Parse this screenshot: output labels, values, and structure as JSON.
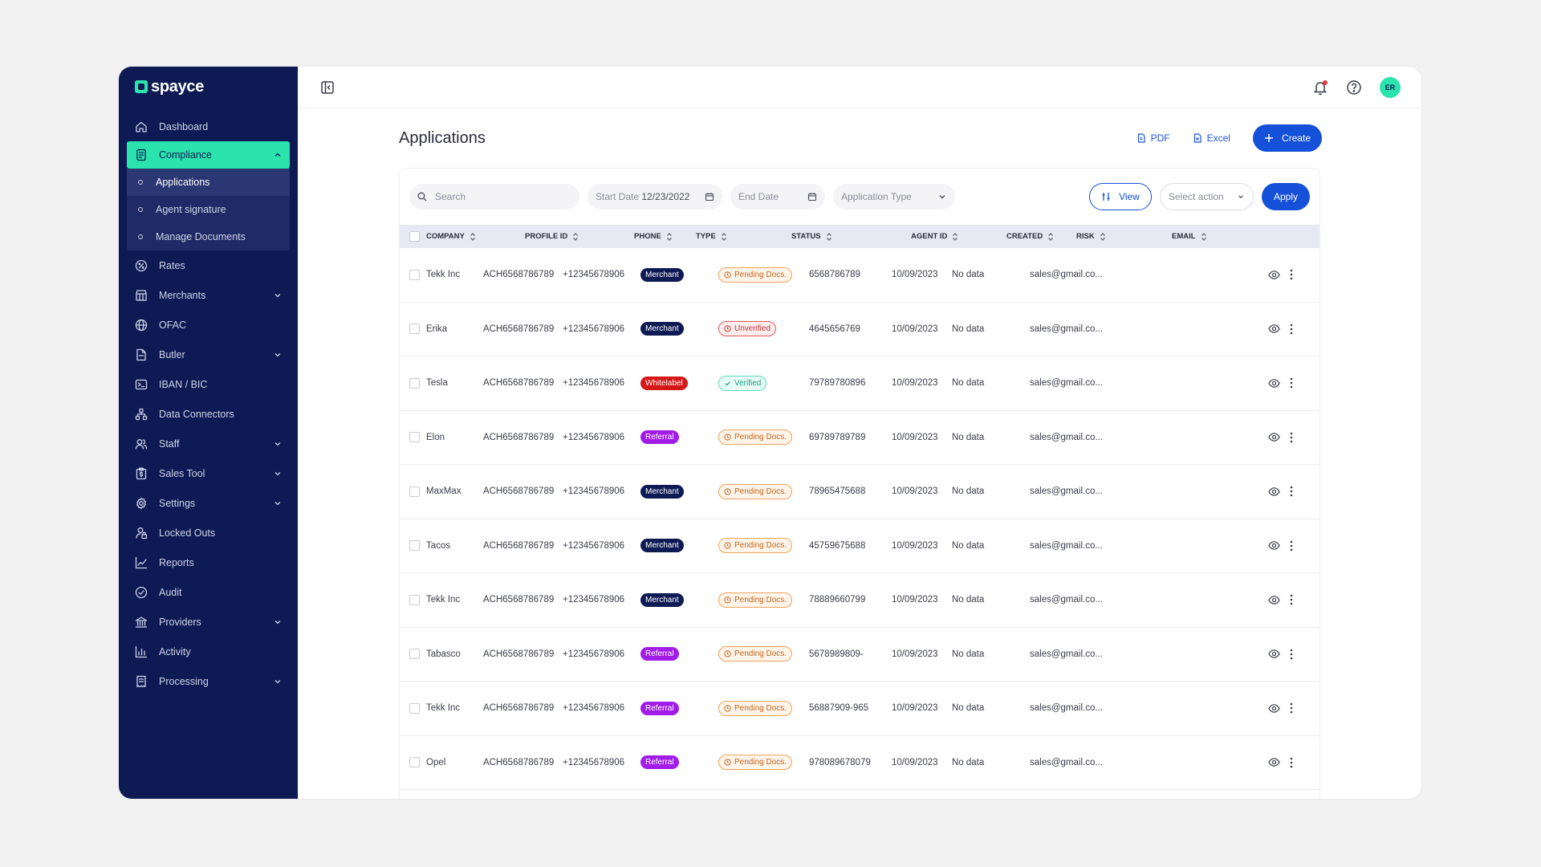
{
  "brand": {
    "name": "spayce"
  },
  "sidebar": {
    "items": [
      {
        "label": "Dashboard",
        "icon": "home-icon",
        "expandable": false
      },
      {
        "label": "Compliance",
        "icon": "document-icon",
        "expandable": true,
        "active": true
      },
      {
        "label": "Rates",
        "icon": "percent-icon",
        "expandable": false
      },
      {
        "label": "Merchants",
        "icon": "store-icon",
        "expandable": true
      },
      {
        "label": "OFAC",
        "icon": "globe-icon",
        "expandable": false
      },
      {
        "label": "Butler",
        "icon": "file-icon",
        "expandable": true
      },
      {
        "label": "IBAN / BIC",
        "icon": "terminal-icon",
        "expandable": false
      },
      {
        "label": "Data Connectors",
        "icon": "network-icon",
        "expandable": false
      },
      {
        "label": "Staff",
        "icon": "users-icon",
        "expandable": true
      },
      {
        "label": "Sales Tool",
        "icon": "clipboard-dollar-icon",
        "expandable": true
      },
      {
        "label": "Settings",
        "icon": "gear-icon",
        "expandable": true
      },
      {
        "label": "Locked Outs",
        "icon": "lock-user-icon",
        "expandable": false
      },
      {
        "label": "Reports",
        "icon": "chart-line-icon",
        "expandable": false
      },
      {
        "label": "Audit",
        "icon": "check-circle-icon",
        "expandable": false
      },
      {
        "label": "Providers",
        "icon": "bank-icon",
        "expandable": true
      },
      {
        "label": "Activity",
        "icon": "bar-chart-icon",
        "expandable": false
      },
      {
        "label": "Processing",
        "icon": "receipt-icon",
        "expandable": true
      }
    ],
    "compliance_sub": [
      {
        "label": "Applications",
        "current": true
      },
      {
        "label": "Agent signature",
        "current": false
      },
      {
        "label": "Manage Documents",
        "current": false
      }
    ]
  },
  "topbar": {
    "avatar_initials": "ER"
  },
  "page": {
    "title": "Applications",
    "pdf_label": "PDF",
    "excel_label": "Excel",
    "create_label": "Create"
  },
  "filters": {
    "search_placeholder": "Search",
    "start_date_label": "Start Date",
    "start_date_value": "12/23/2022",
    "end_date_placeholder": "End Date",
    "application_type_placeholder": "Application Type",
    "view_label": "View",
    "select_action_placeholder": "Select action",
    "apply_label": "Apply"
  },
  "table": {
    "headers": {
      "company": "COMPANY",
      "profile_id": "PROFILE ID",
      "phone": "PHONE",
      "type": "TYPE",
      "status": "STATUS",
      "agent_id": "AGENT ID",
      "created": "CREATED",
      "risk": "RISK",
      "email": "EMAIL"
    },
    "rows": [
      {
        "company": "Tekk Inc",
        "profile_id": "ACH6568786789",
        "phone": "+12345678906",
        "type": "Merchant",
        "status": "Pending Docs.",
        "agent_id": "6568786789",
        "created": "10/09/2023",
        "risk": "No data",
        "email": "sales@gmail.co..."
      },
      {
        "company": "Erika",
        "profile_id": "ACH6568786789",
        "phone": "+12345678906",
        "type": "Merchant",
        "status": "Unverified",
        "agent_id": "4645656769",
        "created": "10/09/2023",
        "risk": "No data",
        "email": "sales@gmail.co..."
      },
      {
        "company": "Tesla",
        "profile_id": "ACH6568786789",
        "phone": "+12345678906",
        "type": "Whitelabel",
        "status": "Verified",
        "agent_id": "79789780896",
        "created": "10/09/2023",
        "risk": "No data",
        "email": "sales@gmail.co..."
      },
      {
        "company": "Elon",
        "profile_id": "ACH6568786789",
        "phone": "+12345678906",
        "type": "Referral",
        "status": "Pending Docs.",
        "agent_id": "69789789789",
        "created": "10/09/2023",
        "risk": "No data",
        "email": "sales@gmail.co..."
      },
      {
        "company": "MaxMax",
        "profile_id": "ACH6568786789",
        "phone": "+12345678906",
        "type": "Merchant",
        "status": "Pending Docs.",
        "agent_id": "78965475688",
        "created": "10/09/2023",
        "risk": "No data",
        "email": "sales@gmail.co..."
      },
      {
        "company": "Tacos",
        "profile_id": "ACH6568786789",
        "phone": "+12345678906",
        "type": "Merchant",
        "status": "Pending Docs.",
        "agent_id": "45759675688",
        "created": "10/09/2023",
        "risk": "No data",
        "email": "sales@gmail.co..."
      },
      {
        "company": "Tekk Inc",
        "profile_id": "ACH6568786789",
        "phone": "+12345678906",
        "type": "Merchant",
        "status": "Pending Docs.",
        "agent_id": "78889660799",
        "created": "10/09/2023",
        "risk": "No data",
        "email": "sales@gmail.co..."
      },
      {
        "company": "Tabasco",
        "profile_id": "ACH6568786789",
        "phone": "+12345678906",
        "type": "Referral",
        "status": "Pending Docs.",
        "agent_id": "5678989809-",
        "created": "10/09/2023",
        "risk": "No data",
        "email": "sales@gmail.co..."
      },
      {
        "company": "Tekk Inc",
        "profile_id": "ACH6568786789",
        "phone": "+12345678906",
        "type": "Referral",
        "status": "Pending Docs.",
        "agent_id": "56887909-965",
        "created": "10/09/2023",
        "risk": "No data",
        "email": "sales@gmail.co..."
      },
      {
        "company": "Opel",
        "profile_id": "ACH6568786789",
        "phone": "+12345678906",
        "type": "Referral",
        "status": "Pending Docs.",
        "agent_id": "978089678079",
        "created": "10/09/2023",
        "risk": "No data",
        "email": "sales@gmail.co..."
      }
    ]
  },
  "colors": {
    "sidebar_bg": "#0e1a54",
    "accent": "#2be3ac",
    "primary": "#1450d8",
    "merchant": "#0e1a54",
    "whitelabel": "#d41818",
    "referral": "#a21ce8",
    "pending": "#f0a35c",
    "unverified": "#e05757",
    "verified": "#58dcc0"
  }
}
